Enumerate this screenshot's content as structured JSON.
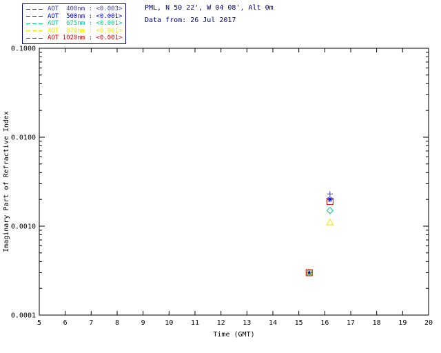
{
  "header": {
    "site_line": "PML, N 50 22', W 04 08', Alt 0m",
    "date_line": "Data from: 26 Jul 2017",
    "text_color": "#000080"
  },
  "legend": {
    "border_color": "#000080",
    "entries": [
      {
        "label": "AOT  400nm : <0.003>",
        "color": "#3b3bb0",
        "symbol": "plus"
      },
      {
        "label": "AOT  500nm : <0.001>",
        "color": "#0000ee",
        "symbol": "asterisk"
      },
      {
        "label": "AOT  675nm : <0.001>",
        "color": "#00cc88",
        "symbol": "diamond"
      },
      {
        "label": "AOT  870nm : <0.001>",
        "color": "#e8e800",
        "symbol": "triangle"
      },
      {
        "label": "AOT 1020nm : <0.001>",
        "color": "#dd0000",
        "symbol": "square"
      }
    ]
  },
  "chart_data": {
    "type": "scatter",
    "title": "",
    "xlabel": "Time (GMT)",
    "ylabel": "Imaginary Part of Refractive Index",
    "xlim": [
      5,
      20
    ],
    "xticks": [
      5,
      6,
      7,
      8,
      9,
      10,
      11,
      12,
      13,
      14,
      15,
      16,
      17,
      18,
      19,
      20
    ],
    "yscale": "log",
    "ylim": [
      0.0001,
      0.1
    ],
    "ytick_labels": [
      "0.0001",
      "0.0010",
      "0.0100",
      "0.1000"
    ],
    "grid": false,
    "legend_position": "top-left-outside",
    "series": [
      {
        "name": "AOT 400nm",
        "legend_value": "<0.003>",
        "color": "#3b3bb0",
        "symbol": "plus",
        "points": [
          [
            15.4,
            0.0003
          ],
          [
            16.2,
            0.0023
          ]
        ]
      },
      {
        "name": "AOT 500nm",
        "legend_value": "<0.001>",
        "color": "#0000ee",
        "symbol": "asterisk",
        "points": [
          [
            15.4,
            0.0003
          ],
          [
            16.2,
            0.002
          ]
        ]
      },
      {
        "name": "AOT 675nm",
        "legend_value": "<0.001>",
        "color": "#00cc88",
        "symbol": "diamond",
        "points": [
          [
            15.4,
            0.0003
          ],
          [
            16.2,
            0.0015
          ]
        ]
      },
      {
        "name": "AOT 870nm",
        "legend_value": "<0.001>",
        "color": "#e8e800",
        "symbol": "triangle",
        "points": [
          [
            15.4,
            0.0003
          ],
          [
            16.2,
            0.0011
          ]
        ]
      },
      {
        "name": "AOT 1020nm",
        "legend_value": "<0.001>",
        "color": "#dd0000",
        "symbol": "square",
        "points": [
          [
            15.4,
            0.0003
          ],
          [
            16.2,
            0.0019
          ]
        ]
      }
    ]
  }
}
